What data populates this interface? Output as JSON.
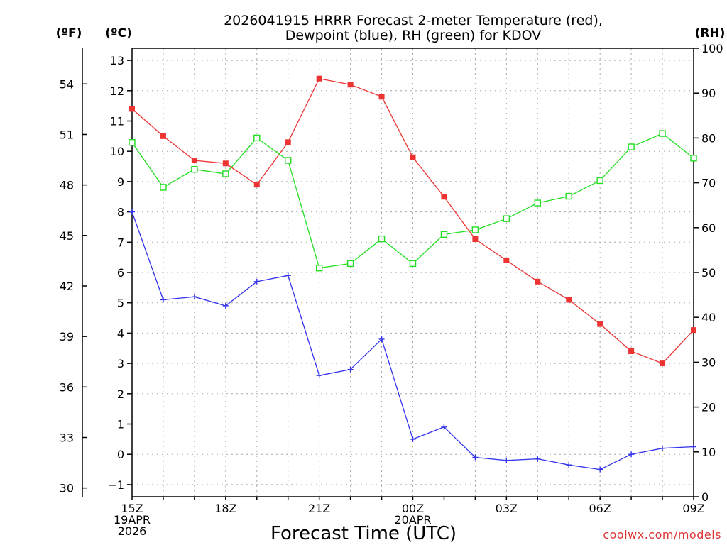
{
  "chart_data": {
    "type": "line",
    "title_line1": "2026041915 HRRR Forecast 2-meter Temperature (red),",
    "title_line2": "Dewpoint (blue), RH (green) for KDOV",
    "xlabel": "Forecast Time (UTC)",
    "credit": "coolwx.com/models",
    "unit_f": "(ºF)",
    "unit_c": "(ºC)",
    "unit_rh": "(RH)",
    "x_hours": [
      0,
      1,
      2,
      3,
      4,
      5,
      6,
      7,
      8,
      9,
      10,
      11,
      12,
      13,
      14,
      15,
      16,
      17,
      18
    ],
    "x_ticks": [
      {
        "hour": 0,
        "lines": [
          "15Z",
          "19APR",
          "2026"
        ]
      },
      {
        "hour": 3,
        "lines": [
          "18Z"
        ]
      },
      {
        "hour": 6,
        "lines": [
          "21Z"
        ]
      },
      {
        "hour": 9,
        "lines": [
          "00Z",
          "20APR"
        ]
      },
      {
        "hour": 12,
        "lines": [
          "03Z"
        ]
      },
      {
        "hour": 15,
        "lines": [
          "06Z"
        ]
      },
      {
        "hour": 18,
        "lines": [
          "09Z"
        ]
      }
    ],
    "xlim": [
      0,
      18
    ],
    "c_axis": {
      "ylim": [
        -1.4,
        13.4
      ],
      "ticks": [
        -1,
        0,
        1,
        2,
        3,
        4,
        5,
        6,
        7,
        8,
        9,
        10,
        11,
        12,
        13
      ]
    },
    "f_axis": {
      "ticks": [
        30,
        33,
        36,
        39,
        42,
        45,
        48,
        51,
        54
      ]
    },
    "rh_axis": {
      "ylim": [
        0,
        100
      ],
      "ticks": [
        0,
        10,
        20,
        30,
        40,
        50,
        60,
        70,
        80,
        90,
        100
      ]
    },
    "series": [
      {
        "name": "Temperature",
        "axis": "c",
        "color": "#ee3333",
        "marker": "filled-square",
        "values": [
          11.4,
          10.5,
          9.7,
          9.6,
          8.9,
          10.3,
          12.4,
          12.2,
          11.8,
          9.8,
          8.5,
          7.1,
          6.4,
          5.7,
          5.1,
          4.3,
          3.4,
          3.0,
          4.1
        ]
      },
      {
        "name": "Dewpoint",
        "axis": "c",
        "color": "#3333ee",
        "marker": "plus",
        "values": [
          8.0,
          5.1,
          5.2,
          4.9,
          5.7,
          5.9,
          2.6,
          2.8,
          3.8,
          0.5,
          0.9,
          -0.1,
          -0.2,
          -0.15,
          -0.35,
          -0.5,
          0.0,
          0.2,
          0.25
        ]
      },
      {
        "name": "RH",
        "axis": "rh",
        "color": "#22dd22",
        "marker": "open-square",
        "values": [
          79,
          69,
          73,
          72,
          80,
          75,
          51,
          52,
          57.5,
          52,
          58.5,
          59.5,
          62,
          65.5,
          67,
          70.5,
          78,
          81,
          75.5
        ]
      }
    ]
  }
}
